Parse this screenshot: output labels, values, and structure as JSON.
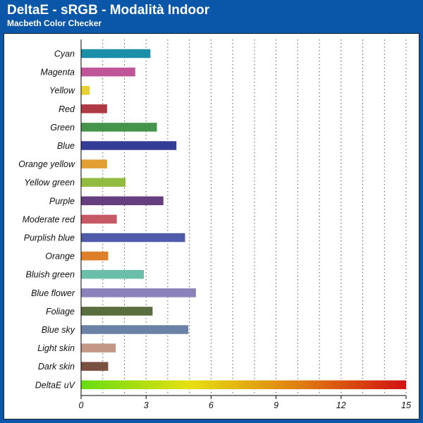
{
  "header": {
    "title": "DeltaE - sRGB - Modalità Indoor",
    "subtitle": "Macbeth Color Checker"
  },
  "colors": {
    "background": "#0a56a8",
    "panel": "#ffffff",
    "title_text": "#ffffff"
  },
  "chart_data": {
    "type": "bar",
    "orientation": "horizontal",
    "categories": [
      "Cyan",
      "Magenta",
      "Yellow",
      "Red",
      "Green",
      "Blue",
      "Orange yellow",
      "Yellow green",
      "Purple",
      "Moderate red",
      "Purplish blue",
      "Orange",
      "Bluish green",
      "Blue flower",
      "Foliage",
      "Blue sky",
      "Light skin",
      "Dark skin",
      "DeltaE uV"
    ],
    "values": [
      3.2,
      2.5,
      0.4,
      1.2,
      3.5,
      4.4,
      1.2,
      2.05,
      3.8,
      1.65,
      4.8,
      1.25,
      2.9,
      5.3,
      3.3,
      4.95,
      1.6,
      1.25,
      15
    ],
    "bar_colors": [
      "#1a8fa7",
      "#c0559a",
      "#e8d030",
      "#b03a44",
      "#46944c",
      "#343d96",
      "#e3a032",
      "#93bb3f",
      "#653f7d",
      "#c75865",
      "#4f5ba9",
      "#e07f2a",
      "#6bbfaa",
      "#8b82bb",
      "#5a6d3e",
      "#6b82a6",
      "#c49884",
      "#7a5040",
      "gradient"
    ],
    "gradient_stops": [
      "#66dd11",
      "#e6e011",
      "#e08011",
      "#d11111"
    ],
    "x_ticks": [
      0,
      3,
      6,
      9,
      12,
      15
    ],
    "x_tick_labels": [
      "0",
      "3",
      "6",
      "9",
      "12",
      "15"
    ],
    "xlim": [
      0,
      15
    ],
    "title": "DeltaE - sRGB - Modalità Indoor",
    "subtitle": "Macbeth Color Checker",
    "xlabel": "",
    "ylabel": "",
    "grid": "vertical dotted, every 1 unit",
    "legend": "none"
  }
}
